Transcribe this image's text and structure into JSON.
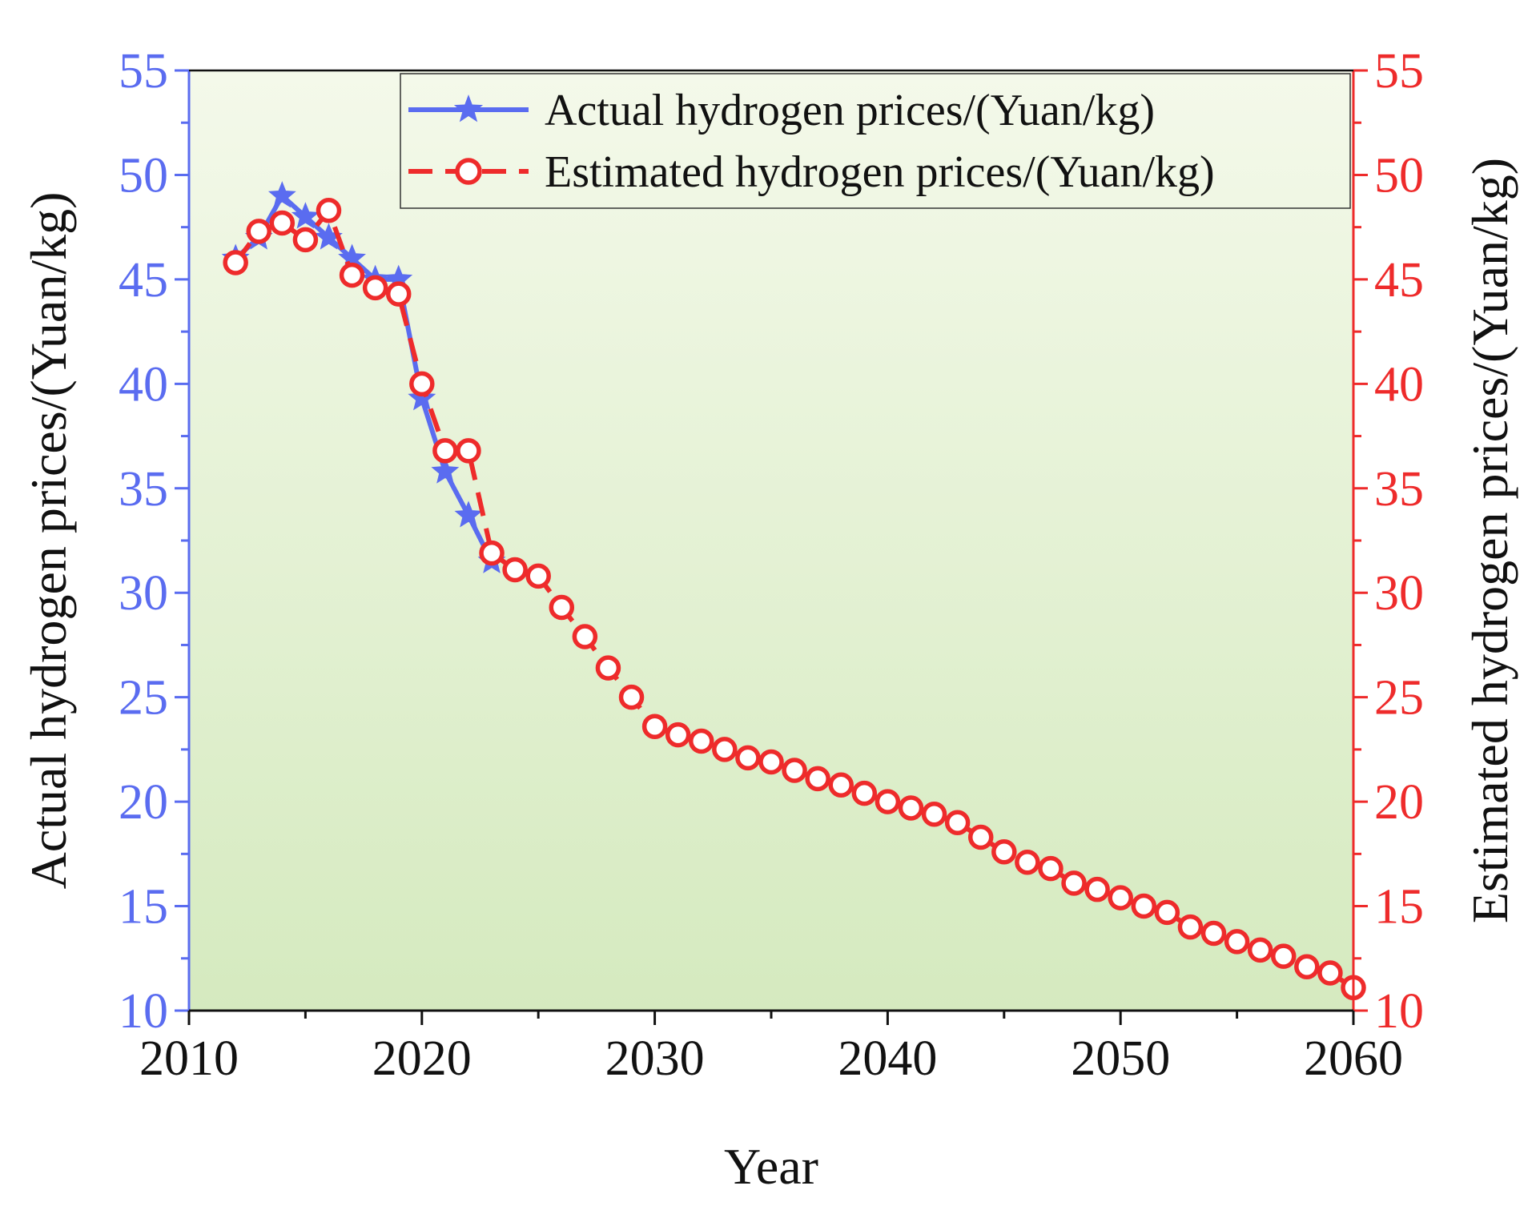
{
  "chart_data": {
    "type": "line",
    "xlabel": "Year",
    "ylabel_left": "Actual hydrogen prices/(Yuan/kg)",
    "ylabel_right": "Estimated hydrogen prices/(Yuan/kg)",
    "xlim": [
      2010,
      2060
    ],
    "ylim": [
      10,
      55
    ],
    "xticks": [
      "2010",
      "2020",
      "2030",
      "2040",
      "2050",
      "2060"
    ],
    "yticks": [
      "10",
      "15",
      "20",
      "25",
      "30",
      "35",
      "40",
      "45",
      "50",
      "55"
    ],
    "legend_position": "top-right",
    "grid": false,
    "series": [
      {
        "name": "Actual hydrogen prices/(Yuan/kg)",
        "color": "#5a6cf0",
        "marker": "star",
        "line": "solid",
        "x": [
          2012,
          2013,
          2014,
          2015,
          2016,
          2017,
          2018,
          2019,
          2020,
          2021,
          2022,
          2023
        ],
        "values": [
          46.0,
          47.0,
          49.0,
          48.0,
          47.0,
          46.0,
          45.0,
          45.0,
          39.3,
          35.8,
          33.7,
          31.5
        ]
      },
      {
        "name": "Estimated hydrogen prices/(Yuan/kg)",
        "color": "#ee2b2b",
        "marker": "open-circle",
        "line": "dashed",
        "x": [
          2012,
          2013,
          2014,
          2015,
          2016,
          2017,
          2018,
          2019,
          2020,
          2021,
          2022,
          2023,
          2024,
          2025,
          2026,
          2027,
          2028,
          2029,
          2030,
          2031,
          2032,
          2033,
          2034,
          2035,
          2036,
          2037,
          2038,
          2039,
          2040,
          2041,
          2042,
          2043,
          2044,
          2045,
          2046,
          2047,
          2048,
          2049,
          2050,
          2051,
          2052,
          2053,
          2054,
          2055,
          2056,
          2057,
          2058,
          2059,
          2060
        ],
        "values": [
          45.8,
          47.3,
          47.7,
          46.9,
          48.3,
          45.2,
          44.6,
          44.3,
          40.0,
          36.8,
          36.8,
          31.9,
          31.1,
          30.8,
          29.3,
          27.9,
          26.4,
          25.0,
          23.6,
          23.2,
          22.9,
          22.5,
          22.1,
          21.9,
          21.5,
          21.1,
          20.8,
          20.4,
          20.0,
          19.7,
          19.4,
          19.0,
          18.3,
          17.6,
          17.1,
          16.8,
          16.1,
          15.8,
          15.4,
          15.0,
          14.7,
          14.0,
          13.7,
          13.3,
          12.9,
          12.6,
          12.1,
          11.8,
          11.1
        ]
      }
    ]
  },
  "colors": {
    "left_axis": "#5a6cf0",
    "right_axis": "#ee2b2b",
    "bg_top": "#f4f9ea",
    "bg_bottom": "#d5eabf"
  }
}
